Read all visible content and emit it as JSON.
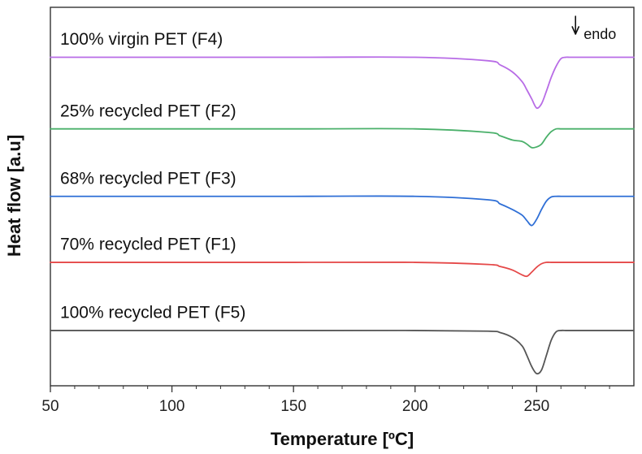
{
  "chart_data": {
    "type": "line",
    "title": "",
    "xlabel": "Temperature [ºC]",
    "ylabel": "Heat flow [a.u]",
    "xlim": [
      50,
      290
    ],
    "ylim": [
      0,
      5
    ],
    "x_ticks": [
      50,
      100,
      150,
      200,
      250
    ],
    "x_tick_labels": [
      "50",
      "100",
      "150",
      "200",
      "250"
    ],
    "y_ticks_shown": false,
    "grid": false,
    "legend": "inline labels above each curve",
    "annotations": [
      {
        "text": "endo",
        "x": 266,
        "arrow": "down"
      }
    ],
    "x": [
      50,
      150,
      200,
      230,
      235,
      240,
      244,
      246,
      248,
      250,
      252,
      254,
      256,
      258,
      260,
      262,
      264,
      270,
      290
    ],
    "series": [
      {
        "name": "100% virgin PET (F4)",
        "color": "#b86ce6",
        "values": [
          4.55,
          4.55,
          4.55,
          4.5,
          4.44,
          4.34,
          4.2,
          4.08,
          3.95,
          3.82,
          3.88,
          4.06,
          4.26,
          4.42,
          4.53,
          4.55,
          4.55,
          4.55,
          4.55
        ]
      },
      {
        "name": "25% recycled PET (F2)",
        "color": "#4ab06a",
        "values": [
          3.52,
          3.52,
          3.52,
          3.47,
          3.42,
          3.36,
          3.34,
          3.3,
          3.25,
          3.26,
          3.3,
          3.4,
          3.48,
          3.52,
          3.52,
          3.52,
          3.52,
          3.52,
          3.52
        ]
      },
      {
        "name": "68% recycled PET (F3)",
        "color": "#2f6fd6",
        "values": [
          2.55,
          2.55,
          2.55,
          2.5,
          2.44,
          2.36,
          2.28,
          2.2,
          2.13,
          2.22,
          2.36,
          2.48,
          2.54,
          2.55,
          2.55,
          2.55,
          2.55,
          2.55,
          2.55
        ]
      },
      {
        "name": "70% recycled PET (F1)",
        "color": "#e54848",
        "values": [
          1.6,
          1.6,
          1.6,
          1.57,
          1.54,
          1.49,
          1.42,
          1.4,
          1.46,
          1.53,
          1.58,
          1.6,
          1.6,
          1.6,
          1.6,
          1.6,
          1.6,
          1.6,
          1.6
        ]
      },
      {
        "name": "100% recycled PET (F5)",
        "color": "#555555",
        "values": [
          0.62,
          0.62,
          0.62,
          0.61,
          0.59,
          0.52,
          0.4,
          0.26,
          0.1,
          0.0,
          0.05,
          0.26,
          0.48,
          0.6,
          0.62,
          0.62,
          0.62,
          0.62,
          0.62
        ]
      }
    ],
    "series_label_x": 54,
    "series_label_offsets": [
      0.18,
      0.18,
      0.18,
      0.18,
      0.18
    ]
  }
}
